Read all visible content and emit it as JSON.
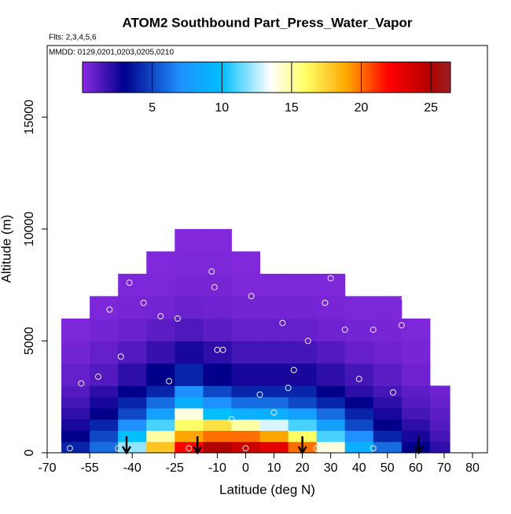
{
  "chart_data": {
    "type": "curtain",
    "title": "ATOM2 Southbound Part_Press_Water_Vapor",
    "subtitle": "Flts: 2,3,4,5,6",
    "annotation": "MMDD: 0129,0201,0203,0205,0210",
    "x_label": "Latitude (deg N)",
    "y_label": "Altitude (m)",
    "xlim": [
      -70,
      80
    ],
    "xticks": [
      -70,
      -55,
      -40,
      -25,
      -10,
      0,
      10,
      20,
      30,
      40,
      50,
      60,
      70,
      80
    ],
    "ylim": [
      0,
      18200
    ],
    "yticks": [
      0,
      5000,
      10000,
      15000
    ],
    "lat_edges": [
      -65,
      -55,
      -45,
      -35,
      -25,
      -15,
      -5,
      5,
      15,
      25,
      35,
      45,
      55,
      65,
      72
    ],
    "alt_edges": [
      0,
      500,
      1000,
      1500,
      2000,
      2500,
      3000,
      4000,
      5000,
      6000,
      7000,
      8000,
      9000,
      10000
    ],
    "z": [
      [
        4,
        6,
        12,
        18,
        22,
        25,
        24,
        23,
        20,
        14,
        9,
        6,
        3,
        2
      ],
      [
        3,
        5,
        10,
        15,
        19,
        20,
        20,
        19,
        16,
        11,
        7,
        4,
        2.5,
        1.5
      ],
      [
        2.5,
        4,
        7,
        11,
        16,
        17,
        15,
        13,
        11,
        8,
        5,
        3,
        2,
        1.2
      ],
      [
        2,
        3,
        5,
        8,
        14,
        10,
        9,
        9,
        8,
        6,
        4,
        2.5,
        1.5,
        1
      ],
      [
        1.5,
        2.5,
        4,
        6,
        9,
        7,
        6,
        6,
        5,
        4,
        3,
        2,
        1.2,
        0.8
      ],
      [
        1.2,
        2,
        3,
        4,
        7,
        5,
        4,
        4,
        4,
        3,
        2,
        1.5,
        1,
        0.6
      ],
      [
        0.8,
        1.2,
        2,
        3,
        4,
        3,
        2.5,
        2.5,
        2.5,
        2,
        1.5,
        1,
        0.6,
        null
      ],
      [
        0.5,
        0.8,
        1.2,
        1.8,
        2.5,
        2,
        1.5,
        1.5,
        1.5,
        1.2,
        0.8,
        0.6,
        0.4,
        null
      ],
      [
        0.3,
        0.5,
        0.7,
        1,
        1.3,
        1,
        0.8,
        0.8,
        0.8,
        0.6,
        0.5,
        0.4,
        0.3,
        null
      ],
      [
        null,
        0.3,
        0.4,
        0.5,
        0.7,
        0.6,
        0.5,
        0.5,
        0.5,
        0.4,
        0.3,
        0.3,
        null,
        null
      ],
      [
        null,
        null,
        0.3,
        0.3,
        0.4,
        0.4,
        0.3,
        0.3,
        0.3,
        0.3,
        null,
        null,
        null,
        null
      ],
      [
        null,
        null,
        null,
        0.2,
        0.3,
        0.3,
        0.2,
        null,
        null,
        null,
        null,
        null,
        null,
        null
      ],
      [
        null,
        null,
        null,
        null,
        0.2,
        0.2,
        null,
        null,
        null,
        null,
        null,
        null,
        null,
        null
      ]
    ],
    "samples": {
      "x": [
        -62,
        -58,
        -52,
        -48,
        -44,
        -41,
        -36,
        -30,
        -27,
        -24,
        -12,
        -11,
        -8,
        -5,
        2,
        5,
        10,
        13,
        17,
        22,
        28,
        35,
        40,
        45,
        52,
        56,
        -45,
        -20,
        0,
        25,
        45,
        -10,
        15,
        30,
        55
      ],
      "y": [
        200,
        3100,
        3400,
        6400,
        4300,
        7600,
        6700,
        6100,
        3200,
        6000,
        8100,
        7400,
        4600,
        1500,
        7000,
        2600,
        1800,
        5800,
        3700,
        5000,
        6700,
        5500,
        3300,
        5500,
        2700,
        6900,
        200,
        200,
        200,
        200,
        200,
        4600,
        2900,
        7800,
        5700
      ]
    },
    "arrows_x": [
      -42,
      -17,
      20,
      61
    ],
    "colorbar_lim": [
      0,
      26.4
    ],
    "colorbar_ticks": [
      5,
      10,
      15,
      20,
      25
    ],
    "colorscale": [
      [
        0,
        "#8a2be2"
      ],
      [
        3,
        "#00008b"
      ],
      [
        7,
        "#1e90ff"
      ],
      [
        10,
        "#00bfff"
      ],
      [
        13.5,
        "#ffffff"
      ],
      [
        16,
        "#ffff66"
      ],
      [
        19,
        "#ffa500"
      ],
      [
        22,
        "#ff0000"
      ],
      [
        25,
        "#b00000"
      ],
      [
        26.4,
        "#9b2226"
      ]
    ]
  }
}
